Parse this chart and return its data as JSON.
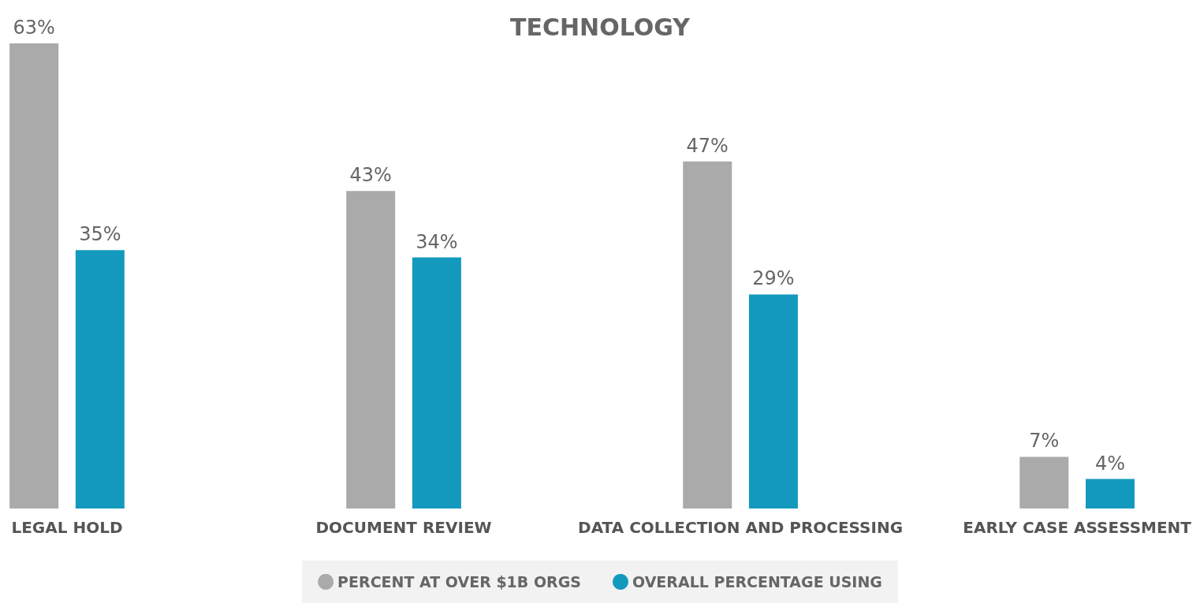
{
  "chart_data": {
    "type": "bar",
    "title": "TECHNOLOGY",
    "categories": [
      "LEGAL HOLD",
      "DOCUMENT REVIEW",
      "DATA COLLECTION AND PROCESSING",
      "EARLY CASE ASSESSMENT"
    ],
    "series": [
      {
        "name": "PERCENT AT OVER $1B ORGS",
        "color": "#aaaaab",
        "values": [
          63,
          43,
          47,
          7
        ],
        "value_labels": [
          "63%",
          "43%",
          "47%",
          "7%"
        ]
      },
      {
        "name": "OVERALL PERCENTAGE USING",
        "color": "#1499be",
        "values": [
          35,
          34,
          29,
          4
        ],
        "value_labels": [
          "35%",
          "34%",
          "29%",
          "4%"
        ]
      }
    ],
    "legend": "bottom"
  }
}
